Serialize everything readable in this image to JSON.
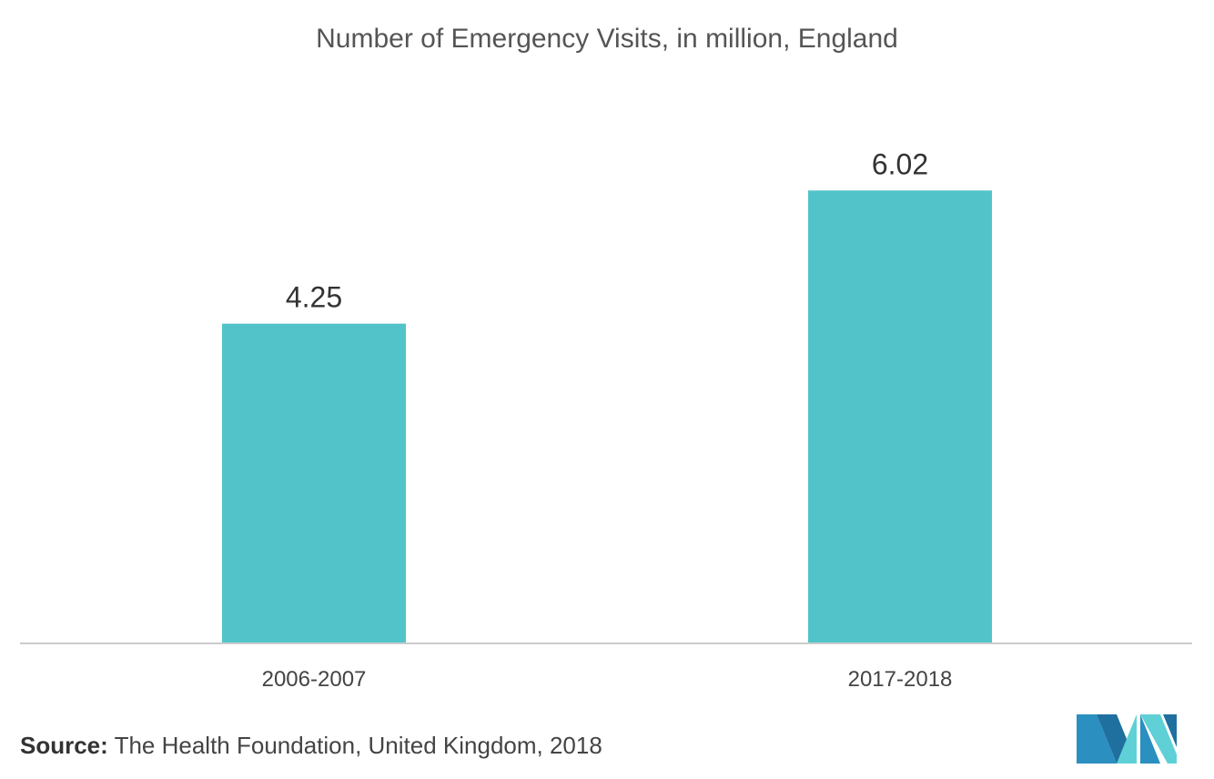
{
  "chart_data": {
    "type": "bar",
    "title": "Number of Emergency Visits, in million, England",
    "categories": [
      "2006-2007",
      "2017-2018"
    ],
    "values": [
      4.25,
      6.02
    ],
    "value_labels": [
      "4.25",
      "6.02"
    ],
    "xlabel": "",
    "ylabel": "",
    "ylim": [
      0,
      7.1
    ],
    "grid": false,
    "legend": "none",
    "bar_color": "#52c4c9"
  },
  "source": {
    "label": "Source:",
    "text": "The Health Foundation, United Kingdom, 2018"
  },
  "logo": {
    "icon": "mordor-logo-icon",
    "colors": [
      "#2b8fc0",
      "#5fd0d6",
      "#1f6f9f"
    ]
  }
}
